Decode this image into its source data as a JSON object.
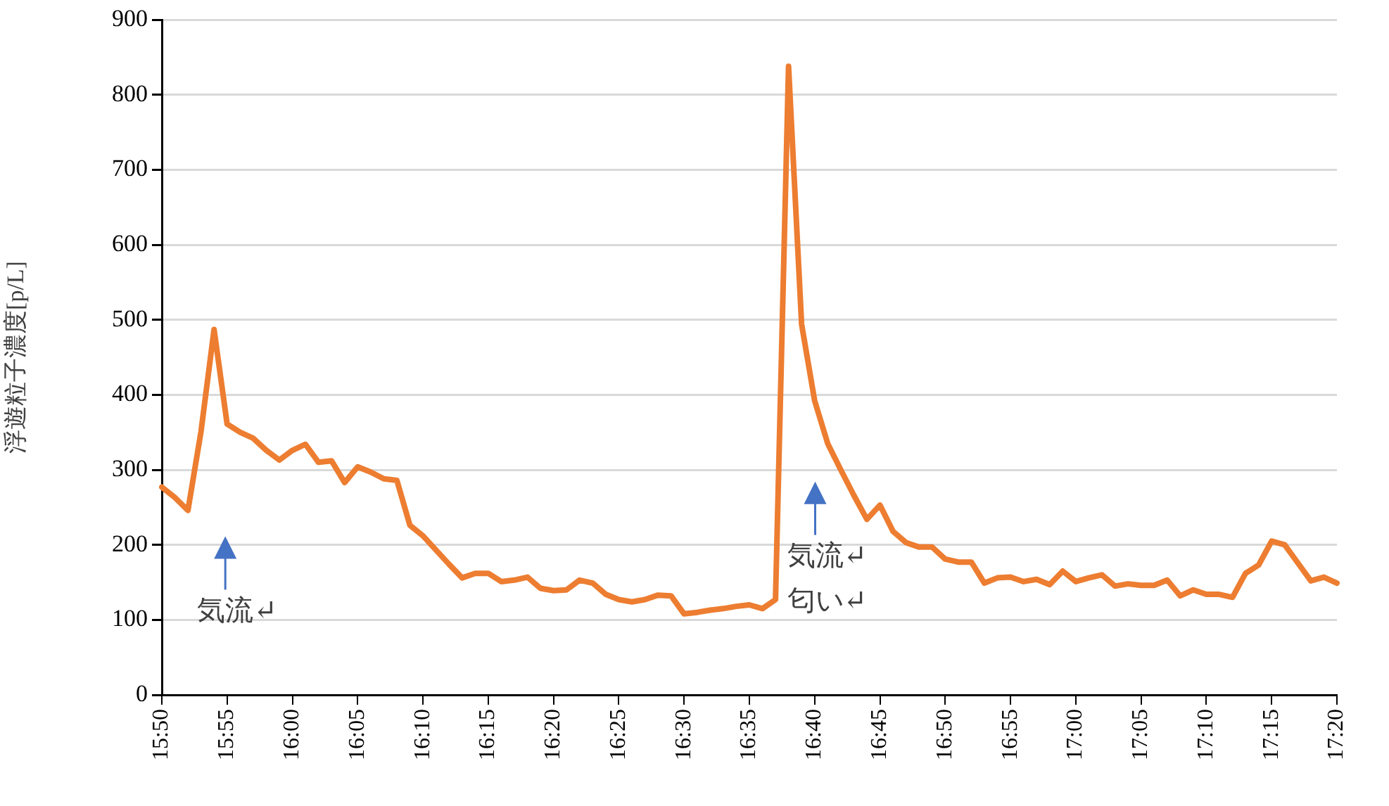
{
  "chart_data": {
    "type": "line",
    "ylabel": "浮遊粒子濃度[p/L]",
    "categories": [
      "15:50",
      null,
      null,
      null,
      null,
      "15:55",
      null,
      null,
      null,
      null,
      "16:00",
      null,
      null,
      null,
      null,
      "16:05",
      null,
      null,
      null,
      null,
      "16:10",
      null,
      null,
      null,
      null,
      "16:15",
      null,
      null,
      null,
      null,
      "16:20",
      null,
      null,
      null,
      null,
      "16:25",
      null,
      null,
      null,
      null,
      "16:30",
      null,
      null,
      null,
      null,
      "16:35",
      null,
      null,
      null,
      null,
      "16:40",
      null,
      null,
      null,
      null,
      "16:45",
      null,
      null,
      null,
      null,
      "16:50",
      null,
      null,
      null,
      null,
      "16:55",
      null,
      null,
      null,
      null,
      "17:00",
      null,
      null,
      null,
      null,
      "17:05",
      null,
      null,
      null,
      null,
      "17:10",
      null,
      null,
      null,
      null,
      "17:15",
      null,
      null,
      null,
      null,
      "17:20"
    ],
    "series": [
      {
        "color": "#ed7d31",
        "values": [
          277,
          263,
          246,
          351,
          487,
          361,
          350,
          342,
          326,
          313,
          326,
          334,
          310,
          312,
          283,
          304,
          297,
          288,
          286,
          226,
          212,
          193,
          174,
          156,
          162,
          162,
          151,
          153,
          157,
          142,
          139,
          140,
          153,
          149,
          134,
          127,
          124,
          127,
          133,
          132,
          108,
          110,
          113,
          115,
          118,
          120,
          115,
          127,
          838,
          494,
          392,
          335,
          300,
          266,
          234,
          253,
          218,
          203,
          197,
          197,
          181,
          177,
          177,
          149,
          156,
          157,
          151,
          154,
          147,
          165,
          151,
          156,
          160,
          145,
          148,
          146,
          146,
          153,
          132,
          140,
          134,
          134,
          130,
          162,
          173,
          205,
          200,
          176,
          152,
          157,
          149
        ]
      }
    ],
    "ylim": [
      0,
      900
    ],
    "yticks": [
      0,
      100,
      200,
      300,
      400,
      500,
      600,
      700,
      800,
      900
    ],
    "grid": "y",
    "legend": false,
    "marker": "none",
    "line_style": "solid",
    "annotations": [
      "気流↵",
      "気流↵\n匂い↵"
    ]
  }
}
